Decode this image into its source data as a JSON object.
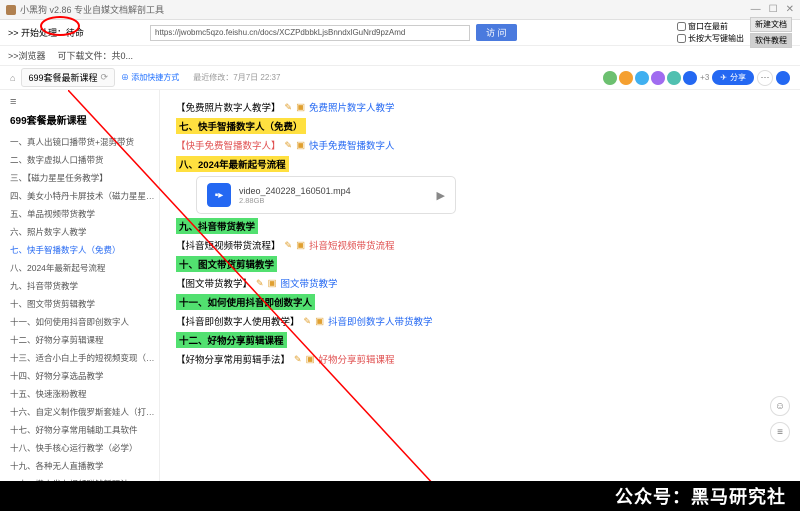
{
  "window": {
    "title": "小黑狗 v2.86 专业自媒文档解剖工具"
  },
  "toolbar": {
    "start": ">> 开始处理：待命",
    "url": "https://jwobmc5qzo.feishu.cn/docs/XCZPdbbkLjsBnndxlGuNrd9pzAmd",
    "visit": "访 问",
    "opt1": "窗口在最前",
    "opt2": "长按大写键输出",
    "btn1": "新建文档",
    "btn2": "软件教程"
  },
  "toolbar2": {
    "t1": ">>浏览器",
    "t2": "可下载文件：共0..."
  },
  "tab": {
    "title": "699套餐最新课程",
    "add": "⊕ 添加快捷方式",
    "meta": "最近修改：7月7日 22:37",
    "more": "+3",
    "share": "分享"
  },
  "avatars": [
    "#6cc070",
    "#f5a030",
    "#40b0f0",
    "#a06cf0",
    "#50c0b0",
    "#2468f2"
  ],
  "sidebar": {
    "title": "699套餐最新课程",
    "items": [
      "一、真人出镜口播带货+混剪带货",
      "二、数字虚拟人口播带货",
      "三、【磁力星星任务教学】",
      "四、美女小特丹卡屏技术（磁力星星任...",
      "五、单品视频带货教学",
      "六、照片数字人教学",
      "七、快手智播数字人（免费）",
      "八、2024年最新起号流程",
      "九、抖音带货教学",
      "十、图文带货剪辑教学",
      "十一、如何使用抖音即创数字人",
      "十二、好物分享剪辑课程",
      "十三、适合小白上手的短视频变现（混...",
      "十四、好物分享选品教学",
      "十五、快速涨粉教程",
      "十六、自定义制作俄罗斯套娃人（打造...",
      "十七、好物分享常用辅助工具软件",
      "十八、快手核心运行教学（必学）",
      "十九、各种无人直播教学",
      "二十、懒人发布视频赚钱新玩法"
    ],
    "active_index": 6
  },
  "content": {
    "l0a": "【免费照片数字人教学】",
    "l0b": "免费照片数字人教学",
    "h7": "七、快手智播数字人（免费）",
    "l7a": "【快手免费智播数字人】",
    "l7b": "快手免费智播数字人",
    "h8": "八、2024年最新起号流程",
    "file_name": "video_240228_160501.mp4",
    "file_size": "2.88GB",
    "h9": "九、抖音带货教学",
    "l9a": "【抖音短视频带货流程】",
    "l9b": "抖音短视频带货流程",
    "h10": "十、图文带货剪辑教学",
    "l10a": "【图文带货教学】",
    "l10b": "图文带货教学",
    "h11": "十一、如何使用抖音即创数字人",
    "l11a": "【抖音即创数字人使用教学】",
    "l11b": "抖音即创数字人带货教学",
    "h12": "十二、好物分享剪辑课程",
    "l12a": "【好物分享常用剪辑手法】",
    "l12b": "好物分享剪辑课程"
  },
  "watermark": "公众号：黑马研究社"
}
